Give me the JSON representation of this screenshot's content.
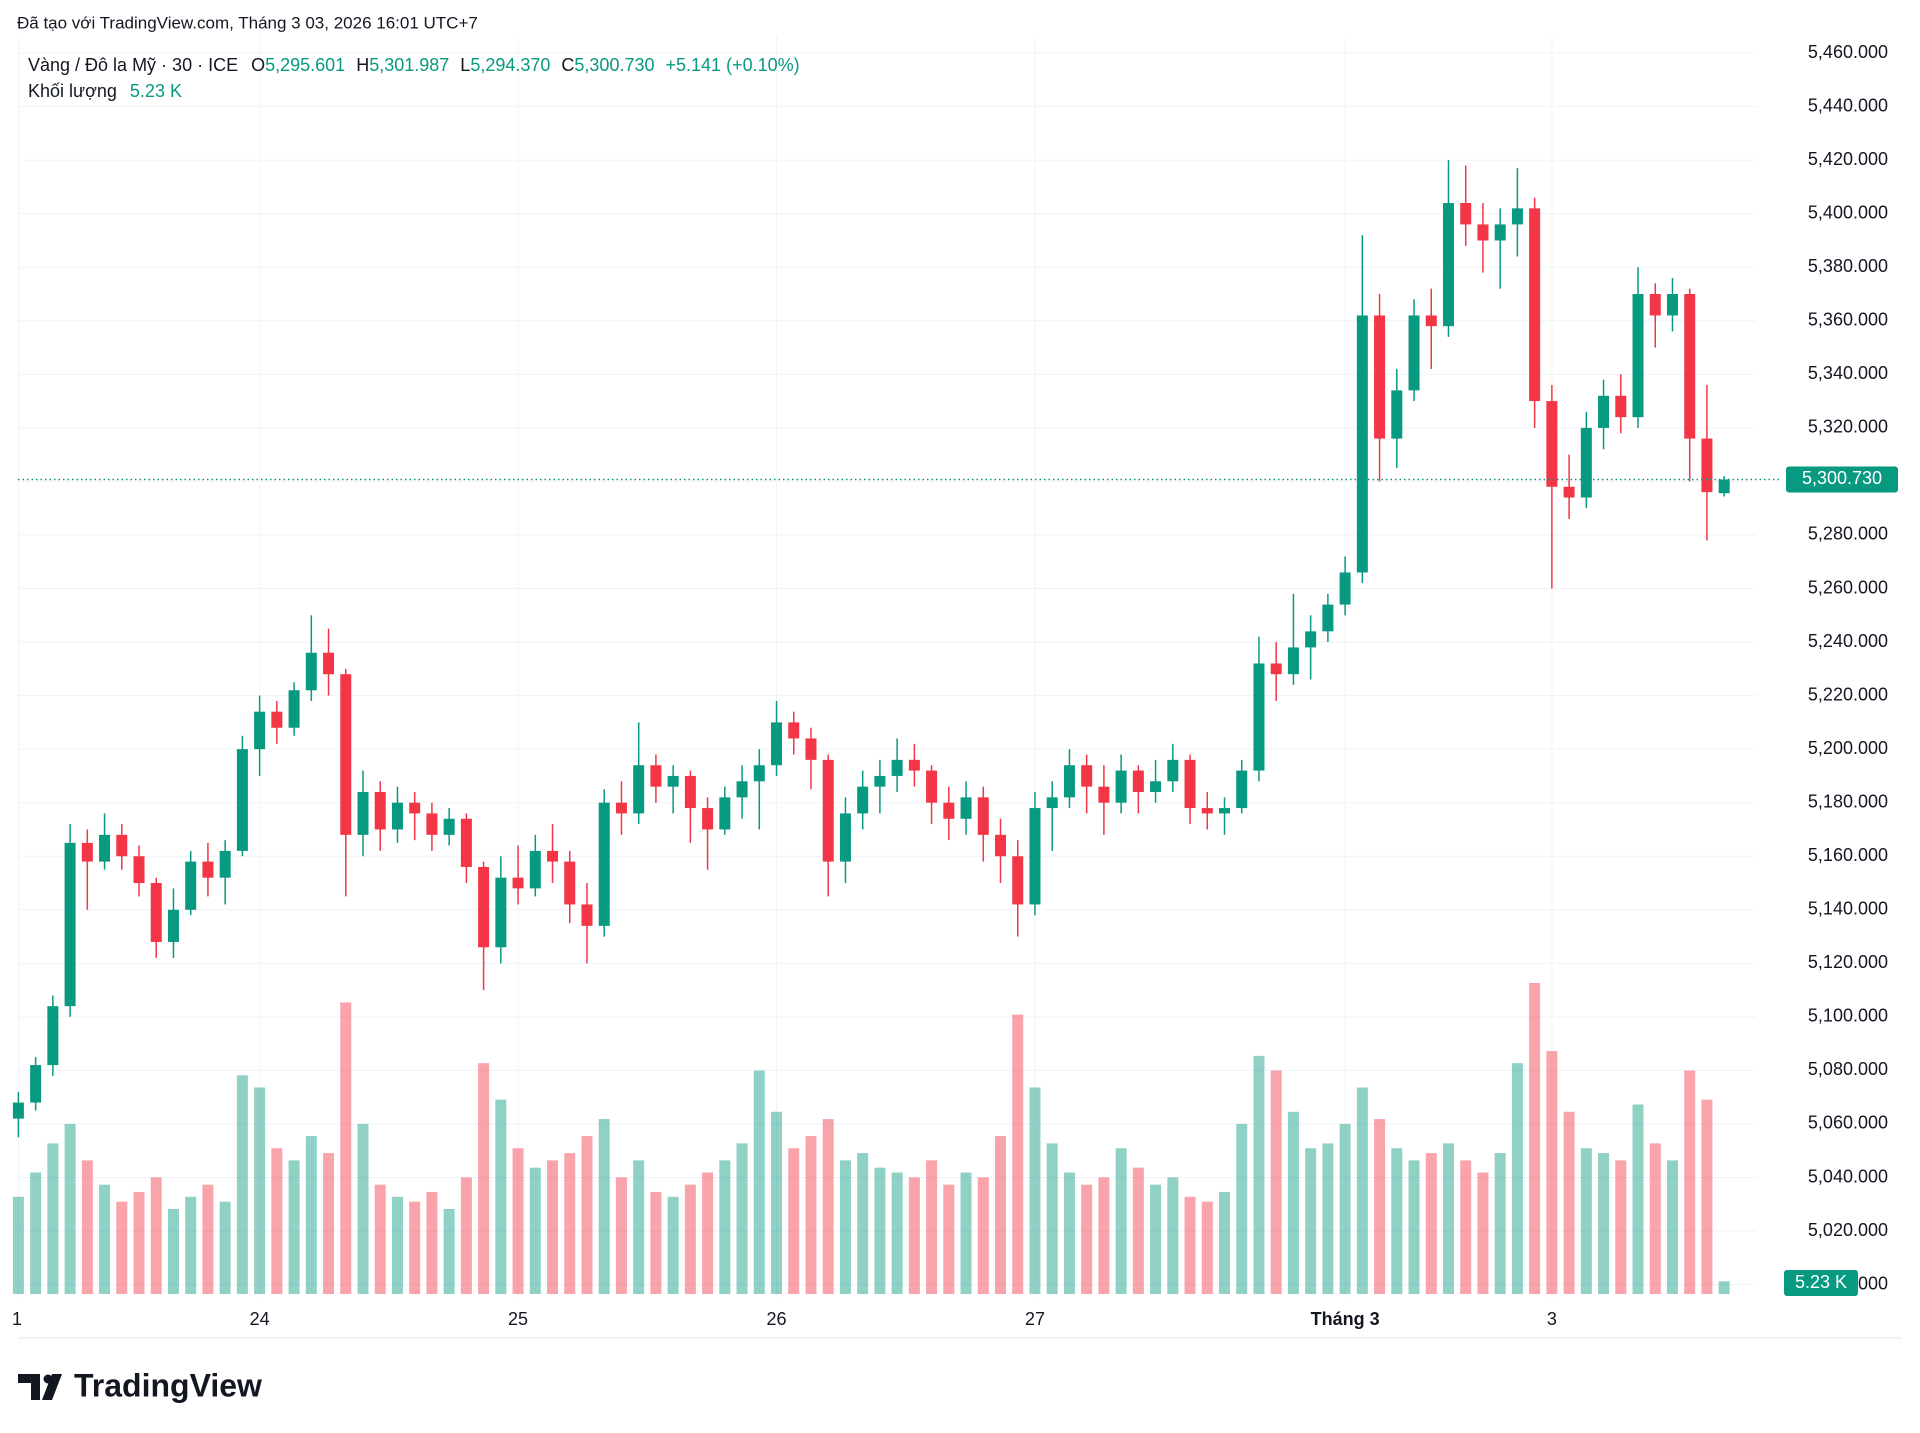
{
  "header": {
    "caption": "Đã tạo với TradingView.com, Tháng 3 03, 2026 16:01 UTC+7"
  },
  "footer": {
    "brand": "TradingView"
  },
  "chart_data": {
    "type": "candlestick",
    "title": "Vàng / Đô la Mỹ · 30 · ICE",
    "legend": {
      "o_label": "O",
      "o": "5,295.601",
      "h_label": "H",
      "h": "5,301.987",
      "l_label": "L",
      "l": "5,294.370",
      "c_label": "C",
      "c": "5,300.730",
      "change": "+5.141 (+0.10%)",
      "volume_label": "Khối lượng",
      "volume": "5.23 K"
    },
    "up_color": "#089981",
    "down_color": "#f23645",
    "grid": true,
    "categories": [
      "1",
      null,
      null,
      null,
      null,
      null,
      null,
      null,
      null,
      null,
      null,
      null,
      null,
      null,
      "24",
      null,
      null,
      null,
      null,
      null,
      null,
      null,
      null,
      null,
      null,
      null,
      null,
      null,
      null,
      "25",
      null,
      null,
      null,
      null,
      null,
      null,
      null,
      null,
      null,
      null,
      null,
      null,
      null,
      null,
      "26",
      null,
      null,
      null,
      null,
      null,
      null,
      null,
      null,
      null,
      null,
      null,
      null,
      null,
      null,
      "27",
      null,
      null,
      null,
      null,
      null,
      null,
      null,
      null,
      null,
      null,
      null,
      null,
      null,
      null,
      null,
      null,
      null,
      "Tháng 3",
      null,
      null,
      null,
      null,
      null,
      null,
      null,
      null,
      null,
      null,
      null,
      "3",
      null,
      null,
      null,
      null,
      null,
      null,
      null,
      null,
      null,
      null
    ],
    "ohlc": [
      [
        5062,
        5072,
        5055,
        5068
      ],
      [
        5068,
        5085,
        5065,
        5082
      ],
      [
        5082,
        5108,
        5078,
        5104
      ],
      [
        5104,
        5172,
        5100,
        5165
      ],
      [
        5165,
        5170,
        5140,
        5158
      ],
      [
        5158,
        5176,
        5155,
        5168
      ],
      [
        5168,
        5172,
        5155,
        5160
      ],
      [
        5160,
        5164,
        5145,
        5150
      ],
      [
        5150,
        5152,
        5122,
        5128
      ],
      [
        5128,
        5148,
        5122,
        5140
      ],
      [
        5140,
        5162,
        5138,
        5158
      ],
      [
        5158,
        5165,
        5145,
        5152
      ],
      [
        5152,
        5166,
        5142,
        5162
      ],
      [
        5162,
        5205,
        5160,
        5200
      ],
      [
        5200,
        5220,
        5190,
        5214
      ],
      [
        5214,
        5218,
        5202,
        5208
      ],
      [
        5208,
        5225,
        5205,
        5222
      ],
      [
        5222,
        5250,
        5218,
        5236
      ],
      [
        5236,
        5245,
        5220,
        5228
      ],
      [
        5228,
        5230,
        5145,
        5168
      ],
      [
        5168,
        5192,
        5160,
        5184
      ],
      [
        5184,
        5188,
        5162,
        5170
      ],
      [
        5170,
        5186,
        5165,
        5180
      ],
      [
        5180,
        5184,
        5166,
        5176
      ],
      [
        5176,
        5180,
        5162,
        5168
      ],
      [
        5168,
        5178,
        5164,
        5174
      ],
      [
        5174,
        5176,
        5150,
        5156
      ],
      [
        5156,
        5158,
        5110,
        5126
      ],
      [
        5126,
        5160,
        5120,
        5152
      ],
      [
        5152,
        5164,
        5142,
        5148
      ],
      [
        5148,
        5168,
        5145,
        5162
      ],
      [
        5162,
        5172,
        5150,
        5158
      ],
      [
        5158,
        5162,
        5135,
        5142
      ],
      [
        5142,
        5150,
        5120,
        5134
      ],
      [
        5134,
        5185,
        5130,
        5180
      ],
      [
        5180,
        5188,
        5168,
        5176
      ],
      [
        5176,
        5210,
        5172,
        5194
      ],
      [
        5194,
        5198,
        5180,
        5186
      ],
      [
        5186,
        5194,
        5176,
        5190
      ],
      [
        5190,
        5192,
        5165,
        5178
      ],
      [
        5178,
        5182,
        5155,
        5170
      ],
      [
        5170,
        5186,
        5168,
        5182
      ],
      [
        5182,
        5194,
        5174,
        5188
      ],
      [
        5188,
        5200,
        5170,
        5194
      ],
      [
        5194,
        5218,
        5190,
        5210
      ],
      [
        5210,
        5214,
        5198,
        5204
      ],
      [
        5204,
        5208,
        5185,
        5196
      ],
      [
        5196,
        5198,
        5145,
        5158
      ],
      [
        5158,
        5182,
        5150,
        5176
      ],
      [
        5176,
        5192,
        5170,
        5186
      ],
      [
        5186,
        5196,
        5176,
        5190
      ],
      [
        5190,
        5204,
        5184,
        5196
      ],
      [
        5196,
        5202,
        5186,
        5192
      ],
      [
        5192,
        5194,
        5172,
        5180
      ],
      [
        5180,
        5186,
        5166,
        5174
      ],
      [
        5174,
        5188,
        5168,
        5182
      ],
      [
        5182,
        5186,
        5158,
        5168
      ],
      [
        5168,
        5174,
        5150,
        5160
      ],
      [
        5160,
        5166,
        5130,
        5142
      ],
      [
        5142,
        5184,
        5138,
        5178
      ],
      [
        5178,
        5188,
        5162,
        5182
      ],
      [
        5182,
        5200,
        5178,
        5194
      ],
      [
        5194,
        5198,
        5176,
        5186
      ],
      [
        5186,
        5194,
        5168,
        5180
      ],
      [
        5180,
        5198,
        5176,
        5192
      ],
      [
        5192,
        5194,
        5176,
        5184
      ],
      [
        5184,
        5196,
        5180,
        5188
      ],
      [
        5188,
        5202,
        5184,
        5196
      ],
      [
        5196,
        5198,
        5172,
        5178
      ],
      [
        5178,
        5184,
        5170,
        5176
      ],
      [
        5176,
        5182,
        5168,
        5178
      ],
      [
        5178,
        5196,
        5176,
        5192
      ],
      [
        5192,
        5242,
        5188,
        5232
      ],
      [
        5232,
        5240,
        5218,
        5228
      ],
      [
        5228,
        5258,
        5224,
        5238
      ],
      [
        5238,
        5250,
        5226,
        5244
      ],
      [
        5244,
        5258,
        5240,
        5254
      ],
      [
        5254,
        5272,
        5250,
        5266
      ],
      [
        5266,
        5392,
        5262,
        5362
      ],
      [
        5362,
        5370,
        5300,
        5316
      ],
      [
        5316,
        5342,
        5305,
        5334
      ],
      [
        5334,
        5368,
        5330,
        5362
      ],
      [
        5362,
        5372,
        5342,
        5358
      ],
      [
        5358,
        5420,
        5354,
        5404
      ],
      [
        5404,
        5418,
        5388,
        5396
      ],
      [
        5396,
        5404,
        5378,
        5390
      ],
      [
        5390,
        5402,
        5372,
        5396
      ],
      [
        5396,
        5417,
        5384,
        5402
      ],
      [
        5402,
        5406,
        5320,
        5330
      ],
      [
        5330,
        5336,
        5260,
        5298
      ],
      [
        5298,
        5310,
        5286,
        5294
      ],
      [
        5294,
        5326,
        5290,
        5320
      ],
      [
        5320,
        5338,
        5312,
        5332
      ],
      [
        5332,
        5340,
        5318,
        5324
      ],
      [
        5324,
        5380,
        5320,
        5370
      ],
      [
        5370,
        5374,
        5350,
        5362
      ],
      [
        5362,
        5376,
        5356,
        5370
      ],
      [
        5370,
        5372,
        5300,
        5316
      ],
      [
        5316,
        5336,
        5278,
        5296
      ],
      [
        5295.601,
        5301.987,
        5294.37,
        5300.73
      ]
    ],
    "volume": [
      40,
      50,
      62,
      70,
      55,
      45,
      38,
      42,
      48,
      35,
      40,
      45,
      38,
      90,
      85,
      60,
      55,
      65,
      58,
      120,
      70,
      45,
      40,
      38,
      42,
      35,
      48,
      95,
      80,
      60,
      52,
      55,
      58,
      65,
      72,
      48,
      55,
      42,
      40,
      45,
      50,
      55,
      62,
      92,
      75,
      60,
      65,
      72,
      55,
      58,
      52,
      50,
      48,
      55,
      45,
      50,
      48,
      65,
      115,
      85,
      62,
      50,
      45,
      48,
      60,
      52,
      45,
      48,
      40,
      38,
      42,
      70,
      98,
      92,
      75,
      60,
      62,
      70,
      85,
      72,
      60,
      55,
      58,
      62,
      55,
      50,
      58,
      95,
      128,
      100,
      75,
      60,
      58,
      55,
      78,
      62,
      55,
      92,
      80,
      5.23
    ],
    "ylim": [
      4995,
      5466
    ],
    "yticks": [
      {
        "value": 5000,
        "label": "5,000.000"
      },
      {
        "value": 5020,
        "label": "5,020.000"
      },
      {
        "value": 5040,
        "label": "5,040.000"
      },
      {
        "value": 5060,
        "label": "5,060.000"
      },
      {
        "value": 5080,
        "label": "5,080.000"
      },
      {
        "value": 5100,
        "label": "5,100.000"
      },
      {
        "value": 5120,
        "label": "5,120.000"
      },
      {
        "value": 5140,
        "label": "5,140.000"
      },
      {
        "value": 5160,
        "label": "5,160.000"
      },
      {
        "value": 5180,
        "label": "5,180.000"
      },
      {
        "value": 5200,
        "label": "5,200.000"
      },
      {
        "value": 5220,
        "label": "5,220.000"
      },
      {
        "value": 5240,
        "label": "5,240.000"
      },
      {
        "value": 5260,
        "label": "5,260.000"
      },
      {
        "value": 5280,
        "label": "5,280.000"
      },
      {
        "value": 5300,
        "label": "5,300.000"
      },
      {
        "value": 5320,
        "label": "5,320.000"
      },
      {
        "value": 5340,
        "label": "5,340.000"
      },
      {
        "value": 5360,
        "label": "5,360.000"
      },
      {
        "value": 5380,
        "label": "5,380.000"
      },
      {
        "value": 5400,
        "label": "5,400.000"
      },
      {
        "value": 5420,
        "label": "5,420.000"
      },
      {
        "value": 5440,
        "label": "5,440.000"
      },
      {
        "value": 5460,
        "label": "5,460.000"
      }
    ]
  }
}
